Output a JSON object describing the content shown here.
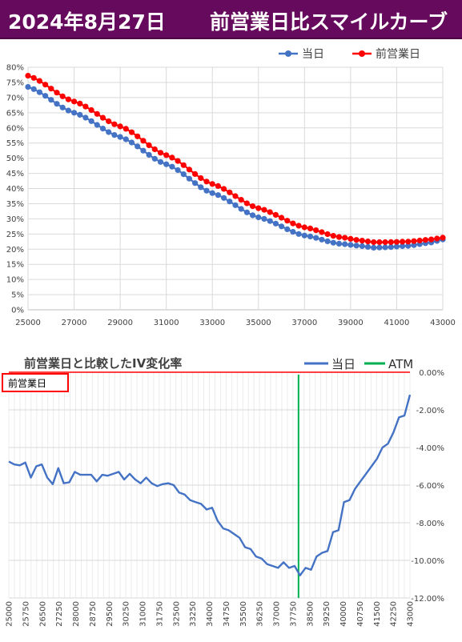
{
  "header": {
    "date": "2024年8月27日",
    "title": "前営業日比スマイルカーブ"
  },
  "colors": {
    "header_bg": "#650a5c",
    "today": "#4472c4",
    "prev": "#ff0000",
    "atm": "#00b050",
    "ref_box": "#ff0000"
  },
  "chart_data": [
    {
      "type": "line",
      "legend_placement": "top-right",
      "grid": true,
      "xlim": [
        25000,
        43000
      ],
      "ylim": [
        0,
        0.8
      ],
      "x_ticks": [
        "25000",
        "27000",
        "29000",
        "31000",
        "33000",
        "35000",
        "37000",
        "39000",
        "41000",
        "43000"
      ],
      "y_ticks": [
        "0%",
        "5%",
        "10%",
        "15%",
        "20%",
        "25%",
        "30%",
        "35%",
        "40%",
        "45%",
        "50%",
        "55%",
        "60%",
        "65%",
        "70%",
        "75%",
        "80%"
      ],
      "series": [
        {
          "name": "当日",
          "color": "#4472c4",
          "marker": "circle",
          "anchors": [
            [
              25000,
              0.735
            ],
            [
              27000,
              0.65
            ],
            [
              29000,
              0.57
            ],
            [
              31000,
              0.48
            ],
            [
              33000,
              0.385
            ],
            [
              35000,
              0.305
            ],
            [
              37000,
              0.245
            ],
            [
              38500,
              0.218
            ],
            [
              39500,
              0.21
            ],
            [
              40000,
              0.205
            ],
            [
              40500,
              0.206
            ],
            [
              41500,
              0.211
            ],
            [
              42500,
              0.222
            ],
            [
              43000,
              0.232
            ]
          ]
        },
        {
          "name": "前営業日",
          "color": "#ff0000",
          "marker": "circle",
          "anchors": [
            [
              25000,
              0.772
            ],
            [
              27000,
              0.687
            ],
            [
              29000,
              0.605
            ],
            [
              31000,
              0.51
            ],
            [
              33000,
              0.415
            ],
            [
              35000,
              0.335
            ],
            [
              37000,
              0.272
            ],
            [
              38500,
              0.24
            ],
            [
              39500,
              0.228
            ],
            [
              40000,
              0.223
            ],
            [
              40500,
              0.223
            ],
            [
              41500,
              0.225
            ],
            [
              42500,
              0.232
            ],
            [
              43000,
              0.238
            ]
          ]
        }
      ]
    },
    {
      "type": "line",
      "title": "前営業日と比較したIV変化率",
      "legend_placement": "top-right",
      "grid": true,
      "xlim": [
        25000,
        43000
      ],
      "ylim": [
        -0.12,
        0
      ],
      "x_ticks": [
        "25000",
        "25750",
        "26500",
        "27250",
        "28000",
        "28750",
        "29500",
        "30250",
        "31000",
        "31750",
        "32500",
        "33250",
        "34000",
        "34750",
        "35500",
        "36250",
        "37000",
        "37750",
        "38500",
        "39250",
        "40000",
        "40750",
        "41500",
        "42250",
        "43000"
      ],
      "y_ticks": [
        "0.00%",
        "-2.00%",
        "-4.00%",
        "-6.00%",
        "-8.00%",
        "-10.00%",
        "-12.00%"
      ],
      "reference_label": "前営業日",
      "atm_strike": 38000,
      "series": [
        {
          "name": "当日",
          "color": "#4472c4",
          "values": [
            -0.0475,
            -0.049,
            -0.0495,
            -0.048,
            -0.056,
            -0.05,
            -0.049,
            -0.056,
            -0.0595,
            -0.051,
            -0.059,
            -0.0585,
            -0.053,
            -0.0545,
            -0.0545,
            -0.0545,
            -0.058,
            -0.0545,
            -0.055,
            -0.054,
            -0.053,
            -0.057,
            -0.054,
            -0.057,
            -0.059,
            -0.056,
            -0.059,
            -0.0605,
            -0.0595,
            -0.059,
            -0.06,
            -0.064,
            -0.065,
            -0.068,
            -0.069,
            -0.07,
            -0.073,
            -0.072,
            -0.079,
            -0.083,
            -0.084,
            -0.086,
            -0.088,
            -0.093,
            -0.094,
            -0.098,
            -0.099,
            -0.102,
            -0.103,
            -0.104,
            -0.101,
            -0.104,
            -0.103,
            -0.108,
            -0.104,
            -0.105,
            -0.098,
            -0.096,
            -0.095,
            -0.085,
            -0.084,
            -0.069,
            -0.068,
            -0.062,
            -0.058,
            -0.054,
            -0.05,
            -0.046,
            -0.04,
            -0.038,
            -0.032,
            -0.024,
            -0.023,
            -0.012
          ]
        },
        {
          "name": "ATM",
          "color": "#00b050"
        }
      ]
    }
  ]
}
